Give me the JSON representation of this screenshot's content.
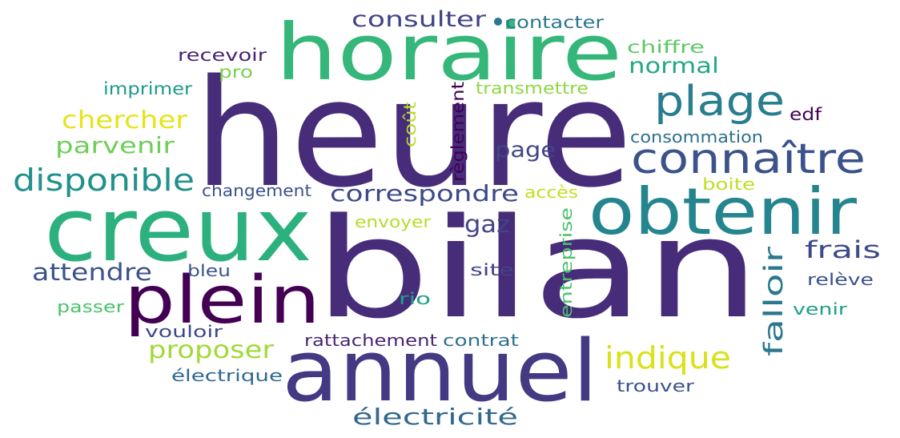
{
  "words": [
    {
      "text": "heure",
      "color": "#472c7a"
    },
    {
      "text": "bilan",
      "color": "#472c7a"
    },
    {
      "text": "horaire",
      "color": "#35b779"
    },
    {
      "text": "creux",
      "color": "#2cb17e"
    },
    {
      "text": "annuel",
      "color": "#443983"
    },
    {
      "text": "obtenir",
      "color": "#25858e"
    },
    {
      "text": "plein",
      "color": "#440154"
    },
    {
      "text": "connaître",
      "color": "#3b528b"
    },
    {
      "text": "plage",
      "color": "#287d8e"
    },
    {
      "text": "disponible",
      "color": "#21918c"
    },
    {
      "text": "indique",
      "color": "#d8e219"
    },
    {
      "text": "proposer",
      "color": "#a0da39"
    },
    {
      "text": "chercher",
      "color": "#e5e419"
    },
    {
      "text": "parvenir",
      "color": "#6ece58"
    },
    {
      "text": "correspondre",
      "color": "#3e4989"
    },
    {
      "text": "attendre",
      "color": "#3b528b"
    },
    {
      "text": "consulter",
      "color": "#414487"
    },
    {
      "text": "électricité",
      "color": "#31688e"
    },
    {
      "text": "frais",
      "color": "#3e4989"
    },
    {
      "text": "falloir",
      "color": "#2a788e"
    },
    {
      "text": "normal",
      "color": "#22a884"
    },
    {
      "text": "page",
      "color": "#404688"
    },
    {
      "text": "gaz",
      "color": "#414487"
    },
    {
      "text": "contacter",
      "color": "#2a788e"
    },
    {
      "text": "chiffre",
      "color": "#5ec962"
    },
    {
      "text": "recevoir",
      "color": "#482475"
    },
    {
      "text": "imprimer",
      "color": "#1f9a8a"
    },
    {
      "text": "pro",
      "color": "#7ad151"
    },
    {
      "text": "transmettre",
      "color": "#8fd744"
    },
    {
      "text": "règlement",
      "color": "#440154"
    },
    {
      "text": "coût",
      "color": "#b5de2b"
    },
    {
      "text": "consommation",
      "color": "#2d708e"
    },
    {
      "text": "edf",
      "color": "#440154"
    },
    {
      "text": "changement",
      "color": "#3b528b"
    },
    {
      "text": "accès",
      "color": "#c2df23"
    },
    {
      "text": "boite",
      "color": "#bddf26"
    },
    {
      "text": "envoyer",
      "color": "#b5de2b"
    },
    {
      "text": "entreprise",
      "color": "#4ac16d"
    },
    {
      "text": "bleu",
      "color": "#3b528b"
    },
    {
      "text": "site",
      "color": "#414487"
    },
    {
      "text": "relève",
      "color": "#3b528b"
    },
    {
      "text": "passer",
      "color": "#4ac16d"
    },
    {
      "text": "rio",
      "color": "#1fa187"
    },
    {
      "text": "venir",
      "color": "#1f9e89"
    },
    {
      "text": "vouloir",
      "color": "#3e4989"
    },
    {
      "text": "rattachement",
      "color": "#482475"
    },
    {
      "text": "contrat",
      "color": "#2c728e"
    },
    {
      "text": "électrique",
      "color": "#31688e"
    },
    {
      "text": "trouver",
      "color": "#3b528b"
    }
  ]
}
